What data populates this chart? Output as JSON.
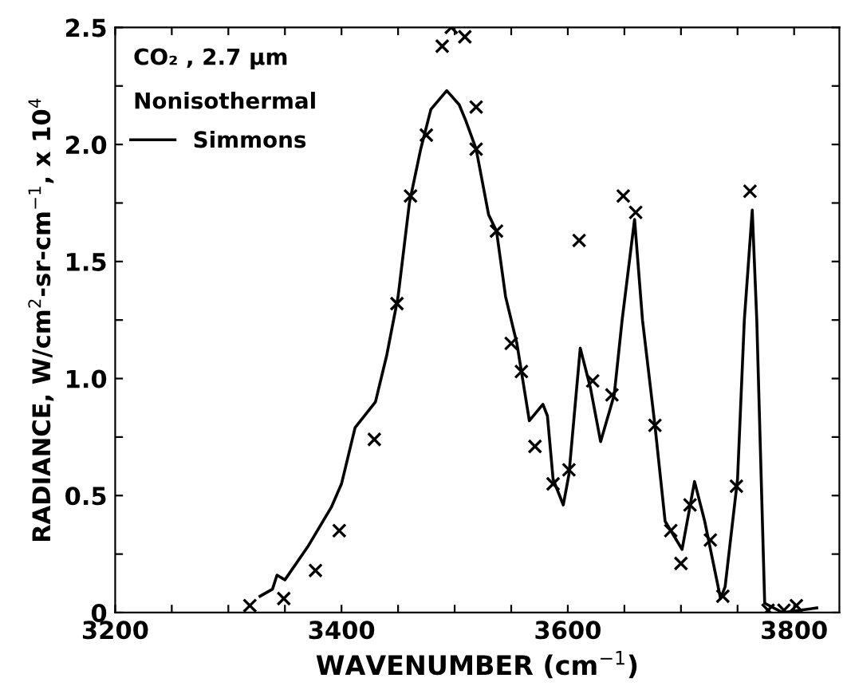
{
  "chart_data": {
    "type": "line",
    "xlabel": "WAVENUMBER (cm$^{−1}$)",
    "ylabel": "RADIANCE, W/cm$^{2}$-sr-cm$^{−1}$, x 10$^{4}$",
    "annotations": [
      "CO₂ , 2.7 μm",
      "Nonisothermal"
    ],
    "xlim": [
      3200,
      3840
    ],
    "ylim": [
      0,
      2.5
    ],
    "xticks": [
      3200,
      {
        "value": 3250,
        "label": null
      },
      {
        "value": 3300,
        "label": null
      },
      {
        "value": 3350,
        "label": null
      },
      3400,
      {
        "value": 3450,
        "label": null
      },
      {
        "value": 3500,
        "label": null
      },
      {
        "value": 3550,
        "label": null
      },
      3600,
      {
        "value": 3650,
        "label": null
      },
      {
        "value": 3700,
        "label": null
      },
      {
        "value": 3750,
        "label": null
      },
      3800
    ],
    "yticks": [
      0,
      {
        "value": 0.25,
        "label": null
      },
      0.5,
      {
        "value": 0.75,
        "label": null
      },
      {
        "value": 1,
        "label": "1.0"
      },
      {
        "value": 1.25,
        "label": null
      },
      1.5,
      {
        "value": 1.75,
        "label": null
      },
      {
        "value": 2,
        "label": "2.0"
      },
      {
        "value": 2.25,
        "label": null
      },
      2.5
    ],
    "grid": false,
    "legend": "top left",
    "series": [
      {
        "type": "scatter",
        "marker": "cross",
        "color": "#000000",
        "x": [
          3319,
          3349,
          3377,
          3398,
          3429,
          3449,
          3461,
          3475,
          3489,
          3497,
          3509,
          3519,
          3519,
          3537,
          3550,
          3559,
          3571,
          3587,
          3601,
          3610,
          3622,
          3639,
          3649,
          3660,
          3677,
          3691,
          3700,
          3708,
          3726,
          3737,
          3749,
          3761,
          3777,
          3791,
          3802
        ],
        "values": [
          0.03,
          0.06,
          0.18,
          0.35,
          0.74,
          1.32,
          1.78,
          2.04,
          2.42,
          2.5,
          2.46,
          2.16,
          1.98,
          1.63,
          1.15,
          1.03,
          0.71,
          0.55,
          0.61,
          1.59,
          0.99,
          0.93,
          1.78,
          1.71,
          0.8,
          0.35,
          0.21,
          0.46,
          0.31,
          0.07,
          0.54,
          1.8,
          0.01,
          0.01,
          0.03
        ]
      },
      {
        "name": "Simmons",
        "color": "#000000",
        "line_style": "solid",
        "marker": "none",
        "x": [
          3328,
          3339,
          3343,
          3350,
          3370,
          3391,
          3400,
          3412,
          3430,
          3440,
          3450,
          3460,
          3470,
          3479,
          3493,
          3504,
          3510,
          3519,
          3530,
          3537,
          3545,
          3555,
          3566,
          3578,
          3582,
          3587,
          3596,
          3601,
          3611,
          3620,
          3629,
          3641,
          3648,
          3659,
          3666,
          3677,
          3686,
          3701,
          3712,
          3721,
          3735,
          3739,
          3750,
          3756,
          3763,
          3767,
          3774,
          3790,
          3820
        ],
        "values": [
          0.07,
          0.1,
          0.16,
          0.14,
          0.28,
          0.45,
          0.55,
          0.79,
          0.9,
          1.1,
          1.35,
          1.75,
          1.98,
          2.15,
          2.23,
          2.17,
          2.1,
          1.98,
          1.7,
          1.63,
          1.35,
          1.15,
          0.82,
          0.89,
          0.84,
          0.57,
          0.46,
          0.59,
          1.13,
          0.96,
          0.73,
          0.93,
          1.25,
          1.68,
          1.25,
          0.8,
          0.39,
          0.27,
          0.56,
          0.39,
          0.06,
          0.11,
          0.57,
          1.25,
          1.72,
          1.25,
          0.04,
          0.0,
          0.02
        ]
      }
    ]
  }
}
